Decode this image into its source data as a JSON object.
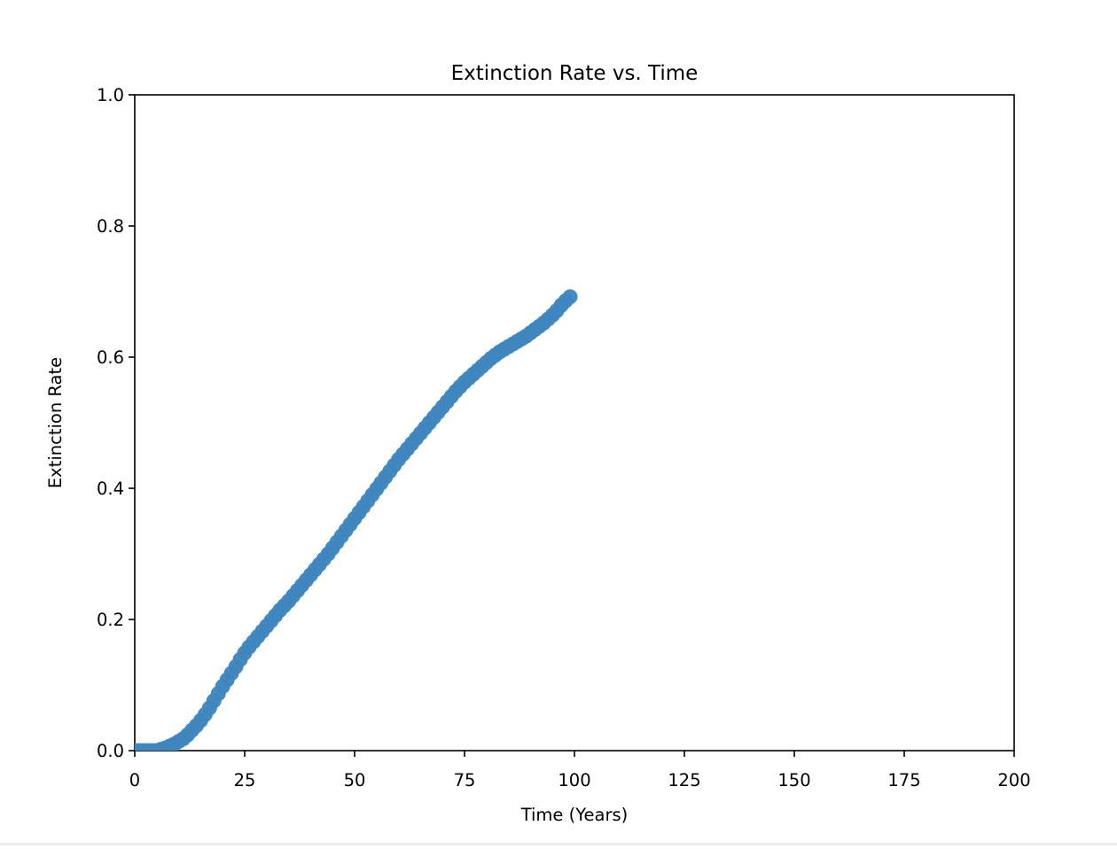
{
  "chart_data": {
    "type": "scatter",
    "title": "Extinction Rate vs. Time",
    "xlabel": "Time (Years)",
    "ylabel": "Extinction Rate",
    "xlim": [
      0,
      200
    ],
    "ylim": [
      0,
      1.0
    ],
    "x_ticks": [
      0,
      25,
      50,
      75,
      100,
      125,
      150,
      175,
      200
    ],
    "x_tick_labels": [
      "0",
      "25",
      "50",
      "75",
      "100",
      "125",
      "150",
      "175",
      "200"
    ],
    "y_ticks": [
      0,
      0.2,
      0.4,
      0.6,
      0.8,
      1.0
    ],
    "y_tick_labels": [
      "0.0",
      "0.2",
      "0.4",
      "0.6",
      "0.8",
      "1.0"
    ],
    "grid": false,
    "legend": "none",
    "marker_color": "#3f86bf",
    "series": [
      {
        "x": [
          0,
          1,
          2,
          3,
          4,
          5,
          6,
          7,
          8,
          9,
          10,
          11,
          12,
          13,
          14,
          15,
          16,
          17,
          18,
          19,
          20,
          21,
          22,
          23,
          24,
          25,
          26,
          27,
          28,
          29,
          30,
          31,
          32,
          33,
          34,
          35,
          36,
          37,
          38,
          39,
          40,
          41,
          42,
          43,
          44,
          45,
          46,
          47,
          48,
          49,
          50,
          51,
          52,
          53,
          54,
          55,
          56,
          57,
          58,
          59,
          60,
          61,
          62,
          63,
          64,
          65,
          66,
          67,
          68,
          69,
          70,
          71,
          72,
          73,
          74,
          75,
          76,
          77,
          78,
          79,
          80,
          81,
          82,
          83,
          84,
          85,
          86,
          87,
          88,
          89,
          90,
          91,
          92,
          93,
          94,
          95,
          96,
          97,
          98,
          99
        ],
        "y": [
          0,
          0,
          0,
          0,
          0,
          0,
          0.002,
          0.004,
          0.007,
          0.01,
          0.014,
          0.018,
          0.024,
          0.031,
          0.038,
          0.046,
          0.055,
          0.065,
          0.076,
          0.087,
          0.098,
          0.108,
          0.118,
          0.128,
          0.139,
          0.149,
          0.158,
          0.166,
          0.174,
          0.182,
          0.19,
          0.198,
          0.206,
          0.214,
          0.221,
          0.228,
          0.236,
          0.244,
          0.252,
          0.26,
          0.268,
          0.276,
          0.284,
          0.292,
          0.3,
          0.309,
          0.318,
          0.327,
          0.336,
          0.345,
          0.354,
          0.363,
          0.372,
          0.381,
          0.39,
          0.399,
          0.408,
          0.417,
          0.426,
          0.435,
          0.444,
          0.452,
          0.46,
          0.468,
          0.476,
          0.484,
          0.492,
          0.5,
          0.508,
          0.516,
          0.524,
          0.532,
          0.54,
          0.548,
          0.555,
          0.562,
          0.568,
          0.574,
          0.58,
          0.586,
          0.592,
          0.598,
          0.603,
          0.608,
          0.612,
          0.616,
          0.62,
          0.624,
          0.628,
          0.632,
          0.637,
          0.642,
          0.647,
          0.652,
          0.658,
          0.664,
          0.671,
          0.679,
          0.686,
          0.692
        ]
      }
    ]
  }
}
